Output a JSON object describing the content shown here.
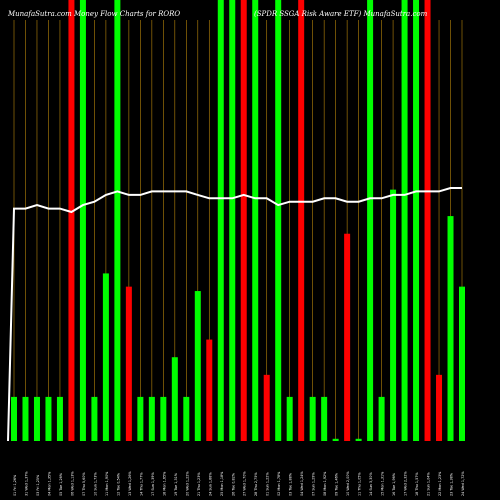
{
  "header": {
    "left_title": "MunafaSutra.com Money Flow Charts for RORO",
    "right_title": "(SPDR SSGA Risk Aware   ETF) MunafaSutra.com"
  },
  "colors": {
    "background": "#000000",
    "up": "#00ff00",
    "down": "#ff0000",
    "grid": "#b8860b",
    "price_line": "#ffffff"
  },
  "chart_data": {
    "type": "bar",
    "title": "MunafaSutra.com Money Flow Charts for RORO (SPDR SSGA Risk Aware   ETF) MunafaSutra.com",
    "grid": true,
    "categories": [
      "01 Fri 1,26%",
      "31 Wed 1,37%",
      "03 Fri 1,25%",
      "04 Mon 1,35%",
      "05 Tue 1,26%",
      "06 Wed 1,13%",
      "07 Thu 5,60%",
      "10 Sun 1,73%",
      "11 Mon 1,90%",
      "12 Tue 0,54%",
      "13 Wed 1,26%",
      "14 Thu 1,77%",
      "17 Sun 1,39%",
      "18 Mon 1,65%",
      "19 Tue 1,31%",
      "20 Wed 1,22%",
      "21 Thu 1,23%",
      "24 Sun 1,88%",
      "25 Mon 1,18%",
      "26 Tue 0,82%",
      "27 Wed 1,70%",
      "28 Thu 2,75%",
      "01 Sun 1,22%",
      "02 Mon 1,78%",
      "03 Tue 1,88%",
      "04 Wed 1,24%",
      "07 Sun 1,29%",
      "08 Mon 1,92%",
      "09 Tue 1,46%",
      "10 Wed 2,00%",
      "11 Thu 1,05%",
      "14 Sun 3,30%",
      "15 Mon 1,31%",
      "16 Tue 1,96%",
      "17 Wed 2,32%",
      "18 Thu 1,57%",
      "21 Sun 1,04%",
      "22 Mon 1,23%",
      "23 Tue 1,38%",
      "24 Wed 1,72%"
    ],
    "series": [
      {
        "values": [
          10,
          10,
          10,
          10,
          10,
          100,
          100,
          10,
          38,
          100,
          35,
          10,
          10,
          10,
          19,
          10,
          34,
          23,
          100,
          100,
          100,
          100,
          15,
          100,
          10,
          100,
          10,
          10,
          0.5,
          47,
          0.5,
          100,
          10,
          57,
          100,
          100,
          100,
          15,
          51,
          35
        ],
        "directions": [
          "up",
          "up",
          "up",
          "up",
          "up",
          "down",
          "up",
          "up",
          "up",
          "up",
          "down",
          "up",
          "up",
          "up",
          "up",
          "up",
          "up",
          "down",
          "up",
          "up",
          "down",
          "up",
          "down",
          "up",
          "up",
          "down",
          "up",
          "up",
          "up",
          "down",
          "up",
          "up",
          "up",
          "up",
          "up",
          "up",
          "down",
          "down",
          "up",
          "up"
        ]
      }
    ],
    "price_line": [
      67,
      67,
      68,
      67,
      67,
      66,
      68,
      69,
      71,
      72,
      71,
      71,
      72,
      72,
      72,
      72,
      71,
      70,
      70,
      70,
      71,
      70,
      70,
      68,
      69,
      69,
      69,
      70,
      70,
      69,
      69,
      70,
      70,
      71,
      71,
      72,
      72,
      72,
      73,
      73
    ],
    "ylim": [
      0,
      100
    ]
  }
}
